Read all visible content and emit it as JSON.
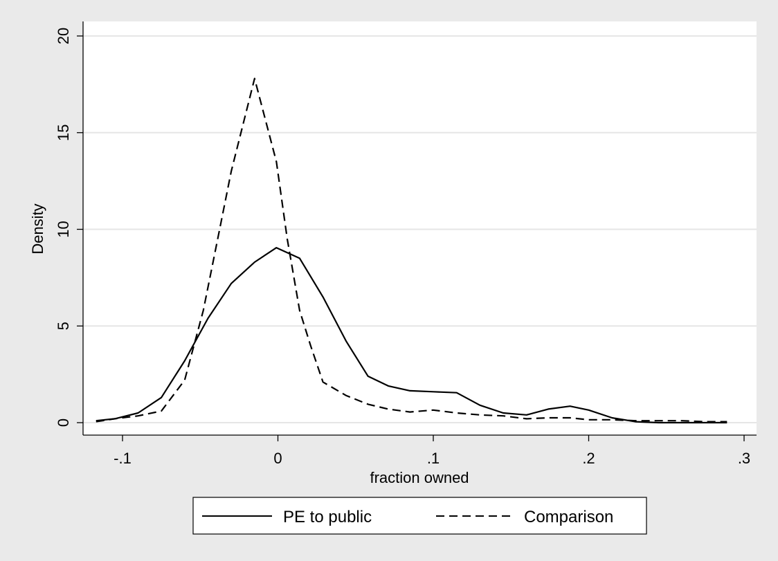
{
  "chart_data": {
    "type": "line",
    "title": "",
    "xlabel": "fraction owned",
    "ylabel": "Density",
    "xlim": [
      -0.12,
      0.3
    ],
    "ylim": [
      0,
      20
    ],
    "x_ticks": [
      -0.1,
      0,
      0.1,
      0.2,
      0.3
    ],
    "x_tick_labels": [
      "-.1",
      "0",
      ".1",
      ".2",
      ".3"
    ],
    "y_ticks": [
      0,
      5,
      10,
      15,
      20
    ],
    "y_tick_labels": [
      "0",
      "5",
      "10",
      "15",
      "20"
    ],
    "grid": "horizontal",
    "legend_position": "bottom",
    "series": [
      {
        "name": "PE to public",
        "style": "solid",
        "color": "#000000",
        "x": [
          -0.117,
          -0.105,
          -0.09,
          -0.075,
          -0.06,
          -0.045,
          -0.03,
          -0.015,
          -0.001,
          0.014,
          0.029,
          0.044,
          0.058,
          0.071,
          0.085,
          0.1,
          0.115,
          0.13,
          0.145,
          0.16,
          0.174,
          0.188,
          0.2,
          0.215,
          0.23,
          0.245,
          0.26,
          0.275,
          0.289
        ],
        "y": [
          0.1,
          0.2,
          0.5,
          1.3,
          3.2,
          5.4,
          7.2,
          8.3,
          9.05,
          8.5,
          6.5,
          4.2,
          2.4,
          1.9,
          1.65,
          1.6,
          1.55,
          0.9,
          0.5,
          0.4,
          0.7,
          0.85,
          0.65,
          0.25,
          0.05,
          0.0,
          0.0,
          0.0,
          0.0
        ]
      },
      {
        "name": "Comparison",
        "style": "dashed",
        "color": "#000000",
        "x": [
          -0.117,
          -0.105,
          -0.09,
          -0.075,
          -0.06,
          -0.048,
          -0.04,
          -0.03,
          -0.015,
          -0.001,
          0.006,
          0.014,
          0.021,
          0.029,
          0.044,
          0.058,
          0.071,
          0.085,
          0.1,
          0.115,
          0.13,
          0.145,
          0.16,
          0.174,
          0.188,
          0.2,
          0.215,
          0.23,
          0.245,
          0.26,
          0.275,
          0.289
        ],
        "y": [
          0.05,
          0.2,
          0.35,
          0.6,
          2.2,
          5.8,
          9.0,
          13.0,
          17.8,
          13.5,
          9.5,
          5.8,
          4.0,
          2.1,
          1.4,
          0.95,
          0.7,
          0.55,
          0.65,
          0.5,
          0.4,
          0.35,
          0.2,
          0.25,
          0.25,
          0.15,
          0.15,
          0.1,
          0.1,
          0.1,
          0.05,
          0.05
        ]
      }
    ]
  }
}
